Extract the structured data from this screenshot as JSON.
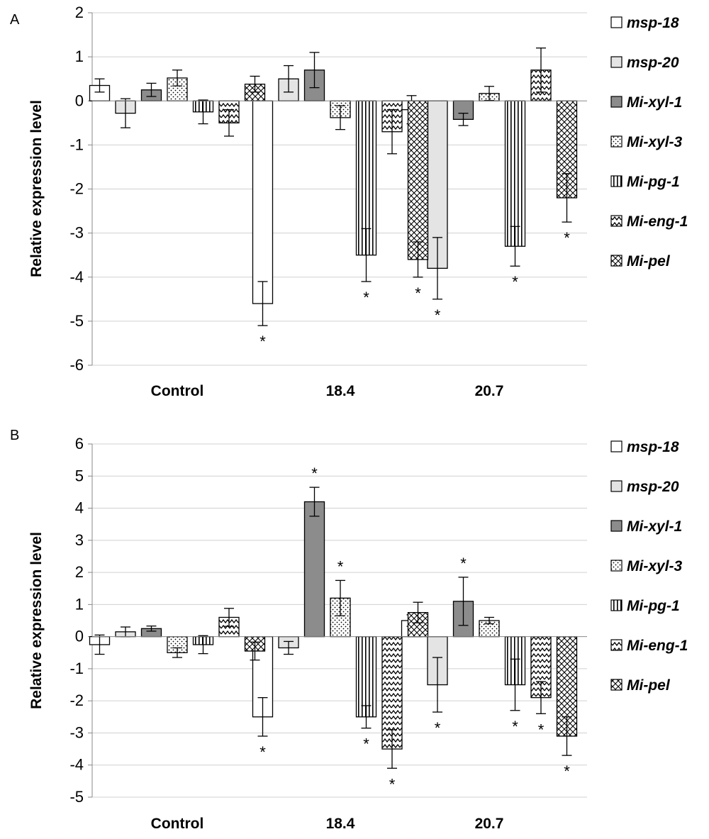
{
  "chart_data": [
    {
      "type": "bar",
      "panel": "A",
      "ylabel": "Relative expression level",
      "xlabel": "",
      "ylim": [
        -6,
        2
      ],
      "yticks": [
        "2",
        "1",
        "0",
        "-1",
        "-2",
        "-3",
        "-4",
        "-5",
        "-6"
      ],
      "categories": [
        "Control",
        "18.4",
        "20.7"
      ],
      "legend": "right",
      "grid": true,
      "series": [
        {
          "name": "msp-18",
          "values": [
            0.35,
            -4.6,
            -0.2
          ],
          "errors": [
            0.15,
            0.5,
            0.32
          ],
          "significant": [
            false,
            true,
            false
          ]
        },
        {
          "name": "msp-20",
          "values": [
            -0.28,
            0.5,
            -3.8
          ],
          "errors": [
            0.33,
            0.3,
            0.7
          ],
          "significant": [
            false,
            false,
            true
          ]
        },
        {
          "name": "Mi-xyl-1",
          "values": [
            0.25,
            0.7,
            -0.42
          ],
          "errors": [
            0.15,
            0.4,
            0.14
          ],
          "significant": [
            false,
            false,
            false
          ]
        },
        {
          "name": "Mi-xyl-3",
          "values": [
            0.52,
            -0.38,
            0.17
          ],
          "errors": [
            0.18,
            0.27,
            0.16
          ],
          "significant": [
            false,
            false,
            false
          ]
        },
        {
          "name": "Mi-pg-1",
          "values": [
            -0.25,
            -3.5,
            -3.3
          ],
          "errors": [
            0.27,
            0.6,
            0.45
          ],
          "significant": [
            false,
            true,
            true
          ]
        },
        {
          "name": "Mi-eng-1",
          "values": [
            -0.5,
            -0.7,
            0.7
          ],
          "errors": [
            0.3,
            0.5,
            0.5
          ],
          "significant": [
            false,
            false,
            false
          ]
        },
        {
          "name": "Mi-pel",
          "values": [
            0.38,
            -3.6,
            -2.2
          ],
          "errors": [
            0.18,
            0.4,
            0.55
          ],
          "significant": [
            false,
            true,
            true
          ]
        }
      ],
      "significance_marker": "*"
    },
    {
      "type": "bar",
      "panel": "B",
      "ylabel": "Relative expression level",
      "xlabel": "",
      "ylim": [
        -5,
        6
      ],
      "yticks": [
        "6",
        "5",
        "4",
        "3",
        "2",
        "1",
        "0",
        "-1",
        "-2",
        "-3",
        "-4",
        "-5"
      ],
      "categories": [
        "Control",
        "18.4",
        "20.7"
      ],
      "legend": "right",
      "grid": true,
      "series": [
        {
          "name": "msp-18",
          "values": [
            -0.25,
            -2.5,
            0.5
          ],
          "errors": [
            0.3,
            0.6,
            0.18
          ],
          "significant": [
            false,
            true,
            false
          ]
        },
        {
          "name": "msp-20",
          "values": [
            0.15,
            -0.35,
            -1.5
          ],
          "errors": [
            0.15,
            0.2,
            0.85
          ],
          "significant": [
            false,
            false,
            true
          ]
        },
        {
          "name": "Mi-xyl-1",
          "values": [
            0.25,
            4.2,
            1.1
          ],
          "errors": [
            0.08,
            0.45,
            0.75
          ],
          "significant": [
            false,
            true,
            true
          ]
        },
        {
          "name": "Mi-xyl-3",
          "values": [
            -0.5,
            1.2,
            0.5
          ],
          "errors": [
            0.15,
            0.55,
            0.1
          ],
          "significant": [
            false,
            true,
            false
          ]
        },
        {
          "name": "Mi-pg-1",
          "values": [
            -0.25,
            -2.5,
            -1.5
          ],
          "errors": [
            0.28,
            0.35,
            0.8
          ],
          "significant": [
            false,
            true,
            true
          ]
        },
        {
          "name": "Mi-eng-1",
          "values": [
            0.6,
            -3.5,
            -1.9
          ],
          "errors": [
            0.28,
            0.6,
            0.5
          ],
          "significant": [
            false,
            true,
            true
          ]
        },
        {
          "name": "Mi-pel",
          "values": [
            -0.45,
            0.75,
            -3.1
          ],
          "errors": [
            0.28,
            0.32,
            0.6
          ],
          "significant": [
            false,
            false,
            true
          ]
        }
      ],
      "significance_marker": "*"
    }
  ],
  "panel_letters": [
    "A",
    "B"
  ]
}
